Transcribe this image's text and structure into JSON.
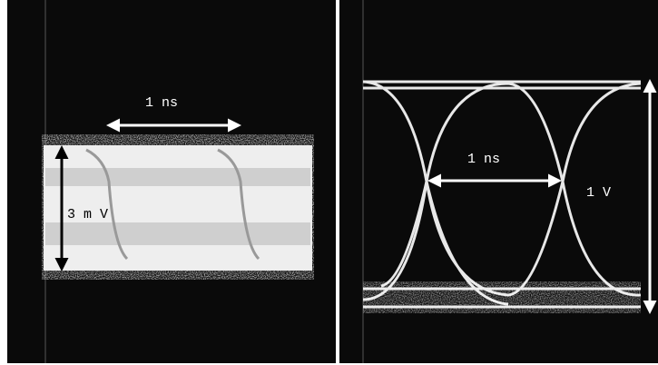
{
  "panels": [
    {
      "labels": {
        "time": "1 ns",
        "amplitude": "3 m V"
      }
    },
    {
      "labels": {
        "time": "1 ns",
        "amplitude": "1 V"
      }
    }
  ]
}
